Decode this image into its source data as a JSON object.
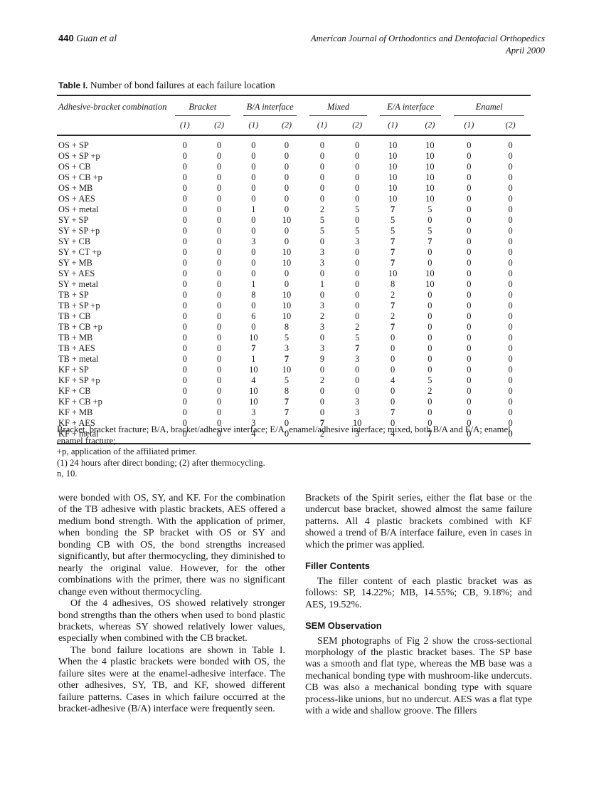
{
  "running_head": {
    "page_number": "440",
    "authors": "Guan et al",
    "journal_line1": "American Journal of Orthodontics and Dentofacial Orthopedics",
    "journal_line2": "April 2000"
  },
  "table": {
    "caption_label": "Table I.",
    "caption_text": "Number of bond failures at each failure location",
    "col0_header": "Adhesive-bracket combination",
    "groups": [
      {
        "label": "Bracket"
      },
      {
        "label": "B/A interface"
      },
      {
        "label": "Mixed"
      },
      {
        "label": "E/A interface"
      },
      {
        "label": "Enamel"
      }
    ],
    "subheaders": [
      "(1)",
      "(2)"
    ],
    "rows": [
      {
        "label": "OS + SP",
        "values": [
          0,
          0,
          0,
          0,
          0,
          0,
          10,
          10,
          0,
          0
        ]
      },
      {
        "label": "OS + SP +p",
        "values": [
          0,
          0,
          0,
          0,
          0,
          0,
          10,
          10,
          0,
          0
        ]
      },
      {
        "label": "OS + CB",
        "values": [
          0,
          0,
          0,
          0,
          0,
          0,
          10,
          10,
          0,
          0
        ]
      },
      {
        "label": "OS + CB +p",
        "values": [
          0,
          0,
          0,
          0,
          0,
          0,
          10,
          10,
          0,
          0
        ]
      },
      {
        "label": "OS + MB",
        "values": [
          0,
          0,
          0,
          0,
          0,
          0,
          10,
          10,
          0,
          0
        ]
      },
      {
        "label": "OS + AES",
        "values": [
          0,
          0,
          0,
          0,
          0,
          0,
          10,
          10,
          0,
          0
        ]
      },
      {
        "label": "OS + metal",
        "values": [
          0,
          0,
          1,
          0,
          2,
          5,
          7,
          5,
          0,
          0
        ]
      },
      {
        "label": "SY + SP",
        "values": [
          0,
          0,
          0,
          10,
          5,
          0,
          5,
          0,
          0,
          0
        ]
      },
      {
        "label": "SY + SP +p",
        "values": [
          0,
          0,
          0,
          0,
          5,
          5,
          5,
          5,
          0,
          0
        ]
      },
      {
        "label": "SY + CB",
        "values": [
          0,
          0,
          3,
          0,
          0,
          3,
          7,
          7,
          0,
          0
        ]
      },
      {
        "label": "SY + CT +p",
        "values": [
          0,
          0,
          0,
          10,
          3,
          0,
          7,
          0,
          0,
          0
        ]
      },
      {
        "label": "SY + MB",
        "values": [
          0,
          0,
          0,
          10,
          3,
          0,
          7,
          0,
          0,
          0
        ]
      },
      {
        "label": "SY + AES",
        "values": [
          0,
          0,
          0,
          0,
          0,
          0,
          10,
          10,
          0,
          0
        ]
      },
      {
        "label": "SY + metal",
        "values": [
          0,
          0,
          1,
          0,
          1,
          0,
          8,
          10,
          0,
          0
        ]
      },
      {
        "label": "TB + SP",
        "values": [
          0,
          0,
          8,
          10,
          0,
          0,
          2,
          0,
          0,
          0
        ]
      },
      {
        "label": "TB + SP +p",
        "values": [
          0,
          0,
          0,
          10,
          3,
          0,
          7,
          0,
          0,
          0
        ]
      },
      {
        "label": "TB + CB",
        "values": [
          0,
          0,
          6,
          10,
          2,
          0,
          2,
          0,
          0,
          0
        ]
      },
      {
        "label": "TB + CB +p",
        "values": [
          0,
          0,
          0,
          8,
          3,
          2,
          7,
          0,
          0,
          0
        ]
      },
      {
        "label": "TB + MB",
        "values": [
          0,
          0,
          10,
          5,
          0,
          5,
          0,
          0,
          0,
          0
        ]
      },
      {
        "label": "TB + AES",
        "values": [
          0,
          0,
          7,
          3,
          3,
          7,
          0,
          0,
          0,
          0
        ]
      },
      {
        "label": "TB + metal",
        "values": [
          0,
          0,
          1,
          7,
          9,
          3,
          0,
          0,
          0,
          0
        ]
      },
      {
        "label": "KF + SP",
        "values": [
          0,
          0,
          10,
          10,
          0,
          0,
          0,
          0,
          0,
          0
        ]
      },
      {
        "label": "KF + SP +p",
        "values": [
          0,
          0,
          4,
          5,
          2,
          0,
          4,
          5,
          0,
          0
        ]
      },
      {
        "label": "KF + CB",
        "values": [
          0,
          0,
          10,
          8,
          0,
          0,
          0,
          2,
          0,
          0
        ]
      },
      {
        "label": "KF + CB +p",
        "values": [
          0,
          0,
          10,
          7,
          0,
          3,
          0,
          0,
          0,
          0
        ]
      },
      {
        "label": "KF + MB",
        "values": [
          0,
          0,
          3,
          7,
          0,
          3,
          7,
          0,
          0,
          0
        ]
      },
      {
        "label": "KF + AES",
        "values": [
          0,
          0,
          3,
          0,
          7,
          10,
          0,
          0,
          0,
          0
        ]
      },
      {
        "label": "KF + metal",
        "values": [
          0,
          0,
          4,
          0,
          2,
          3,
          4,
          7,
          0,
          0
        ]
      }
    ]
  },
  "footnotes": [
    "Bracket, bracket fracture; B/A, bracket/adhesive interface; E/A, enamel/adhesive interface; mixed, both B/A and E/A; enamel, enamel fracture;",
    "+p, application of the affiliated primer.",
    "(1) 24 hours after direct bonding; (2) after thermocycling.",
    "n, 10."
  ],
  "left_column": {
    "para1": "were bonded with OS, SY, and KF. For the combination of the TB adhesive with plastic brackets, AES offered a medium bond strength. With the application of primer, when bonding the SP bracket with OS or SY and bonding CB with OS, the bond strengths increased significantly, but after thermocycling, they diminished to nearly the original value. However, for the other combinations with the primer, there was no significant change even without thermocycling.",
    "para2": "Of the 4 adhesives, OS showed relatively stronger bond strengths than the others when used to bond plastic brackets, whereas SY showed relatively lower values, especially when combined with the CB bracket.",
    "para3": "The bond failure locations are shown in Table I. When the 4 plastic brackets were bonded with OS, the failure sites were at the enamel-adhesive interface. The other adhesives, SY, TB, and KF, showed different failure patterns. Cases in which failure occurred at the bracket-adhesive (B/A) interface were frequently seen."
  },
  "right_column": {
    "para1": "Brackets of the Spirit series, either the flat base or the undercut base bracket, showed almost the same failure patterns. All 4 plastic brackets combined with KF showed a trend of B/A interface failure, even in cases in which the primer was applied.",
    "heading1": "Filler Contents",
    "para2": "The filler content of each plastic bracket was as follows: SP, 14.22%; MB, 14.55%; CB, 9.18%; and AES, 19.52%.",
    "heading2": "SEM Observation",
    "para3": "SEM photographs of Fig 2 show the cross-sectional morphology of the plastic bracket bases. The SP base was a smooth and flat type, whereas the MB base was a mechanical bonding type with mushroom-like undercuts. CB was also a mechanical bonding type with square process-like unions, but no undercut. AES was a flat type with a wide and shallow groove. The fillers"
  }
}
